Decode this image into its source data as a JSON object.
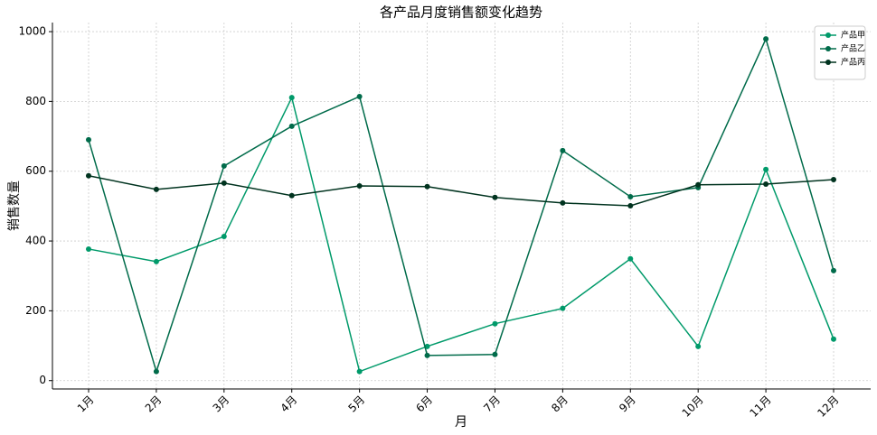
{
  "chart_data": {
    "type": "line",
    "title": "各产品月度销售额变化趋势",
    "x_label": "月",
    "y_label": "销售数量",
    "categories": [
      "1月",
      "2月",
      "3月",
      "4月",
      "5月",
      "6月",
      "7月",
      "8月",
      "9月",
      "10月",
      "11月",
      "12月"
    ],
    "series": [
      {
        "name": "产品甲",
        "color": "#009a6a",
        "values": [
          377,
          341,
          413,
          811,
          26,
          98,
          163,
          207,
          349,
          98,
          605,
          119
        ]
      },
      {
        "name": "产品乙",
        "color": "#006b4a",
        "values": [
          690,
          26,
          615,
          729,
          814,
          72,
          75,
          659,
          527,
          553,
          979,
          315
        ]
      },
      {
        "name": "产品丙",
        "color": "#00331f",
        "values": [
          587,
          548,
          566,
          530,
          558,
          556,
          525,
          509,
          501,
          561,
          563,
          576
        ]
      }
    ],
    "ylim": [
      -24,
      1026
    ],
    "yticks": [
      0,
      200,
      400,
      600,
      800,
      1000
    ],
    "grid": true,
    "legend": "upper right"
  }
}
